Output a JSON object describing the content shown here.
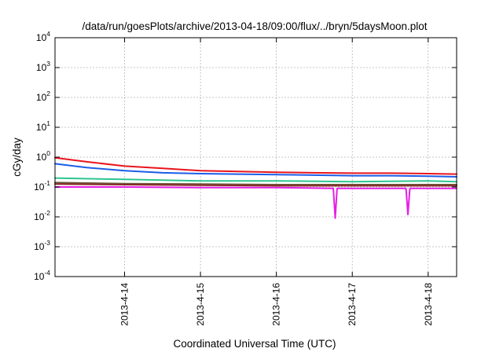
{
  "chart_data": {
    "type": "line",
    "title": "/data/run/goesPlots/archive/2013-04-18/09:00/flux/../bryn/5daysMoon.plot",
    "xlabel": "Coordinated Universal Time (UTC)",
    "ylabel": "cGy/day",
    "yscale": "log",
    "ylim": [
      0.0001,
      10000
    ],
    "xlim": [
      "2013-04-13 02:00",
      "2013-04-18 09:00"
    ],
    "xticks": [
      "2013-4-14",
      "2013-4-15",
      "2013-4-16",
      "2013-4-17",
      "2013-4-18"
    ],
    "yticks": [
      {
        "base": "10",
        "exp": "-4"
      },
      {
        "base": "10",
        "exp": "-3"
      },
      {
        "base": "10",
        "exp": "-2"
      },
      {
        "base": "10",
        "exp": "-1"
      },
      {
        "base": "10",
        "exp": "0"
      },
      {
        "base": "10",
        "exp": "1"
      },
      {
        "base": "10",
        "exp": "2"
      },
      {
        "base": "10",
        "exp": "3"
      },
      {
        "base": "10",
        "exp": "4"
      }
    ],
    "grid": true,
    "series": [
      {
        "color": "#e8141e",
        "x": [
          "2013-04-13 02:00",
          "2013-04-13 12:00",
          "2013-04-14 00:00",
          "2013-04-14 12:00",
          "2013-04-15 00:00",
          "2013-04-15 12:00",
          "2013-04-16 00:00",
          "2013-04-16 12:00",
          "2013-04-17 00:00",
          "2013-04-17 12:00",
          "2013-04-18 00:00",
          "2013-04-18 09:00"
        ],
        "values": [
          0.95,
          0.7,
          0.5,
          0.42,
          0.35,
          0.33,
          0.31,
          0.3,
          0.29,
          0.29,
          0.28,
          0.27
        ]
      },
      {
        "color": "#1b5ee8",
        "x": [
          "2013-04-13 02:00",
          "2013-04-13 12:00",
          "2013-04-14 00:00",
          "2013-04-14 12:00",
          "2013-04-15 00:00",
          "2013-04-15 12:00",
          "2013-04-16 00:00",
          "2013-04-16 12:00",
          "2013-04-17 00:00",
          "2013-04-17 12:00",
          "2013-04-18 00:00",
          "2013-04-18 09:00"
        ],
        "values": [
          0.6,
          0.45,
          0.35,
          0.3,
          0.28,
          0.27,
          0.26,
          0.25,
          0.24,
          0.24,
          0.23,
          0.22
        ]
      },
      {
        "color": "#2ec58e",
        "x": [
          "2013-04-13 02:00",
          "2013-04-14 00:00",
          "2013-04-15 00:00",
          "2013-04-16 00:00",
          "2013-04-17 00:00",
          "2013-04-18 00:00",
          "2013-04-18 09:00"
        ],
        "values": [
          0.2,
          0.18,
          0.16,
          0.16,
          0.15,
          0.16,
          0.15
        ]
      },
      {
        "color": "#6b5a3a",
        "x": [
          "2013-04-13 02:00",
          "2013-04-14 00:00",
          "2013-04-15 00:00",
          "2013-04-16 00:00",
          "2013-04-17 00:00",
          "2013-04-18 00:00",
          "2013-04-18 09:00"
        ],
        "values": [
          0.14,
          0.13,
          0.125,
          0.12,
          0.12,
          0.12,
          0.12
        ]
      },
      {
        "color": "#8a2a2a",
        "x": [
          "2013-04-13 02:00",
          "2013-04-14 00:00",
          "2013-04-15 00:00",
          "2013-04-16 00:00",
          "2013-04-17 00:00",
          "2013-04-18 00:00",
          "2013-04-18 09:00"
        ],
        "values": [
          0.125,
          0.12,
          0.115,
          0.11,
          0.11,
          0.11,
          0.11
        ]
      },
      {
        "color": "#e61ee6",
        "x": [
          "2013-04-13 02:00",
          "2013-04-14 00:00",
          "2013-04-15 00:00",
          "2013-04-16 00:00",
          "2013-04-16 18:00",
          "2013-04-16 18:36",
          "2013-04-16 19:12",
          "2013-04-17 00:00",
          "2013-04-17 17:00",
          "2013-04-17 17:36",
          "2013-04-17 18:12",
          "2013-04-18 00:00",
          "2013-04-18 09:00"
        ],
        "values": [
          0.1,
          0.1,
          0.095,
          0.095,
          0.09,
          0.009,
          0.09,
          0.09,
          0.09,
          0.012,
          0.09,
          0.09,
          0.09
        ]
      }
    ]
  }
}
